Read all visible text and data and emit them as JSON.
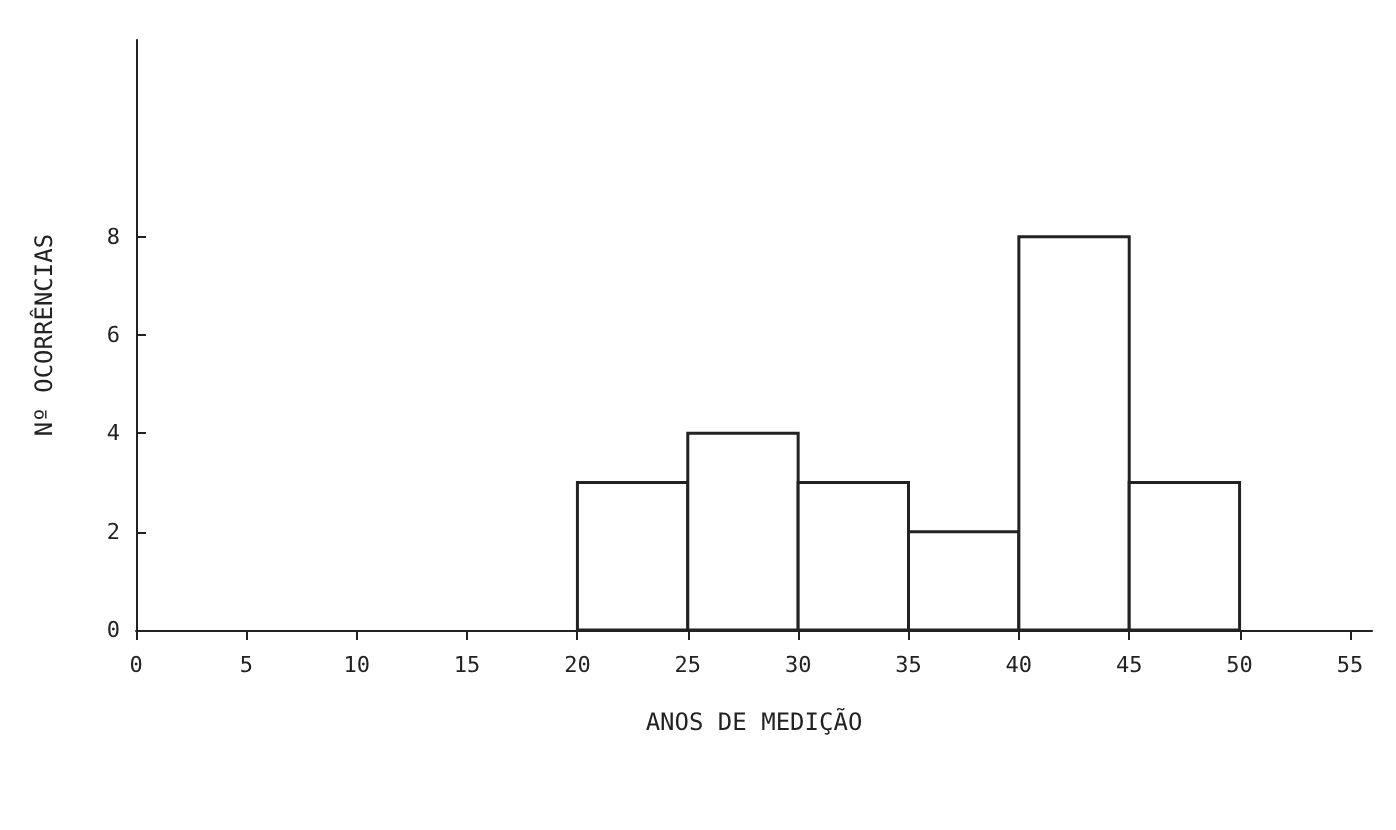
{
  "chart_data": {
    "type": "histogram",
    "xlabel": "ANOS DE MEDIÇÃO",
    "ylabel": "Nº OCORRÊNCIAS",
    "bins": [
      20,
      25,
      30,
      35,
      40,
      45,
      50
    ],
    "values": [
      3,
      4,
      3,
      2,
      8,
      3
    ],
    "color": "#222222",
    "xlim": [
      0,
      56
    ],
    "xticks": [
      0,
      5,
      10,
      15,
      20,
      25,
      30,
      35,
      40,
      45,
      50,
      55
    ],
    "ylim": [
      0,
      12
    ],
    "yticks": [
      0,
      2,
      4,
      6,
      8
    ],
    "grid": false
  }
}
